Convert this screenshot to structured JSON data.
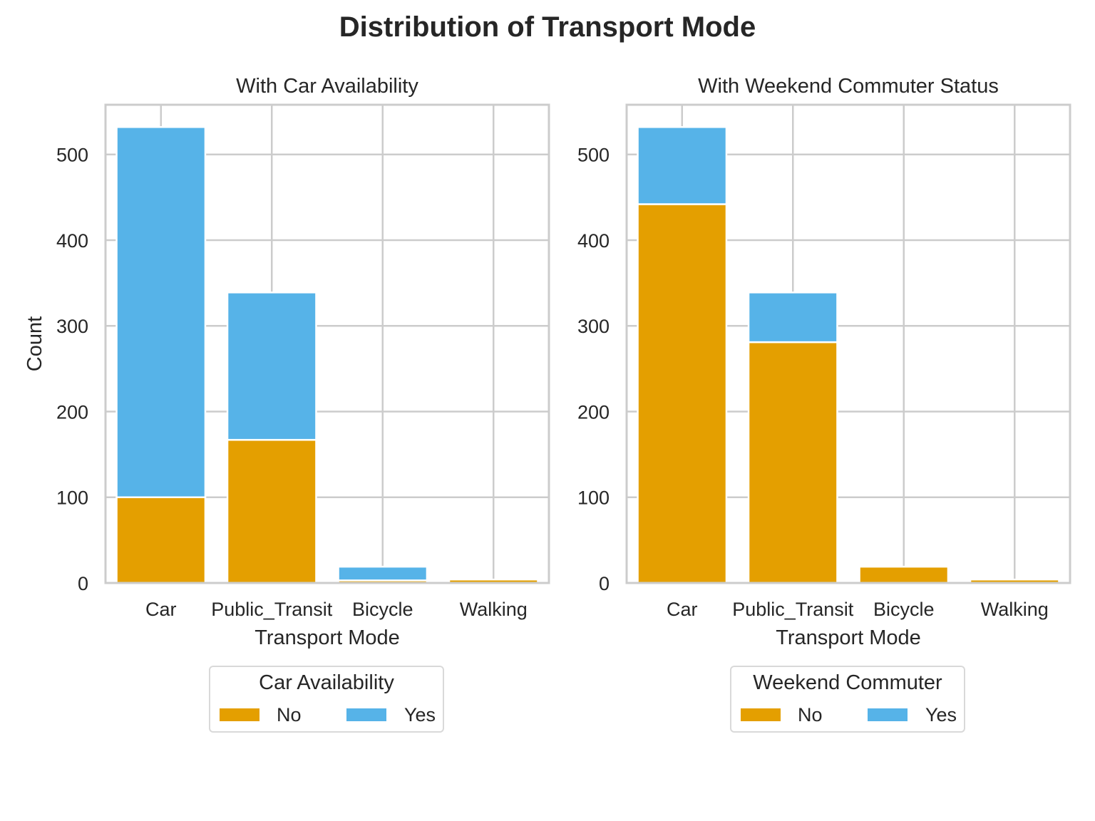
{
  "title": "Distribution of Transport Mode",
  "colors": {
    "no": "#e49f00",
    "yes": "#56b3e8"
  },
  "chart_data": [
    {
      "type": "bar",
      "stacked": true,
      "title": "With Car Availability",
      "xlabel": "Transport Mode",
      "ylabel": "Count",
      "categories": [
        "Car",
        "Public_Transit",
        "Bicycle",
        "Walking"
      ],
      "series": [
        {
          "name": "No",
          "values": [
            100,
            167,
            3,
            4
          ]
        },
        {
          "name": "Yes",
          "values": [
            432,
            172,
            16,
            0
          ]
        }
      ],
      "ylim": [
        0,
        558
      ],
      "yticks": [
        0,
        100,
        200,
        300,
        400,
        500
      ],
      "grid": true,
      "legend": {
        "title": "Car Availability",
        "placement": "bottom-center"
      }
    },
    {
      "type": "bar",
      "stacked": true,
      "title": "With Weekend Commuter Status",
      "xlabel": "Transport Mode",
      "ylabel": "",
      "categories": [
        "Car",
        "Public_Transit",
        "Bicycle",
        "Walking"
      ],
      "series": [
        {
          "name": "No",
          "values": [
            442,
            281,
            19,
            4
          ]
        },
        {
          "name": "Yes",
          "values": [
            90,
            58,
            0,
            0
          ]
        }
      ],
      "ylim": [
        0,
        558
      ],
      "yticks": [
        0,
        100,
        200,
        300,
        400,
        500
      ],
      "grid": true,
      "legend": {
        "title": "Weekend Commuter",
        "placement": "bottom-center"
      }
    }
  ]
}
